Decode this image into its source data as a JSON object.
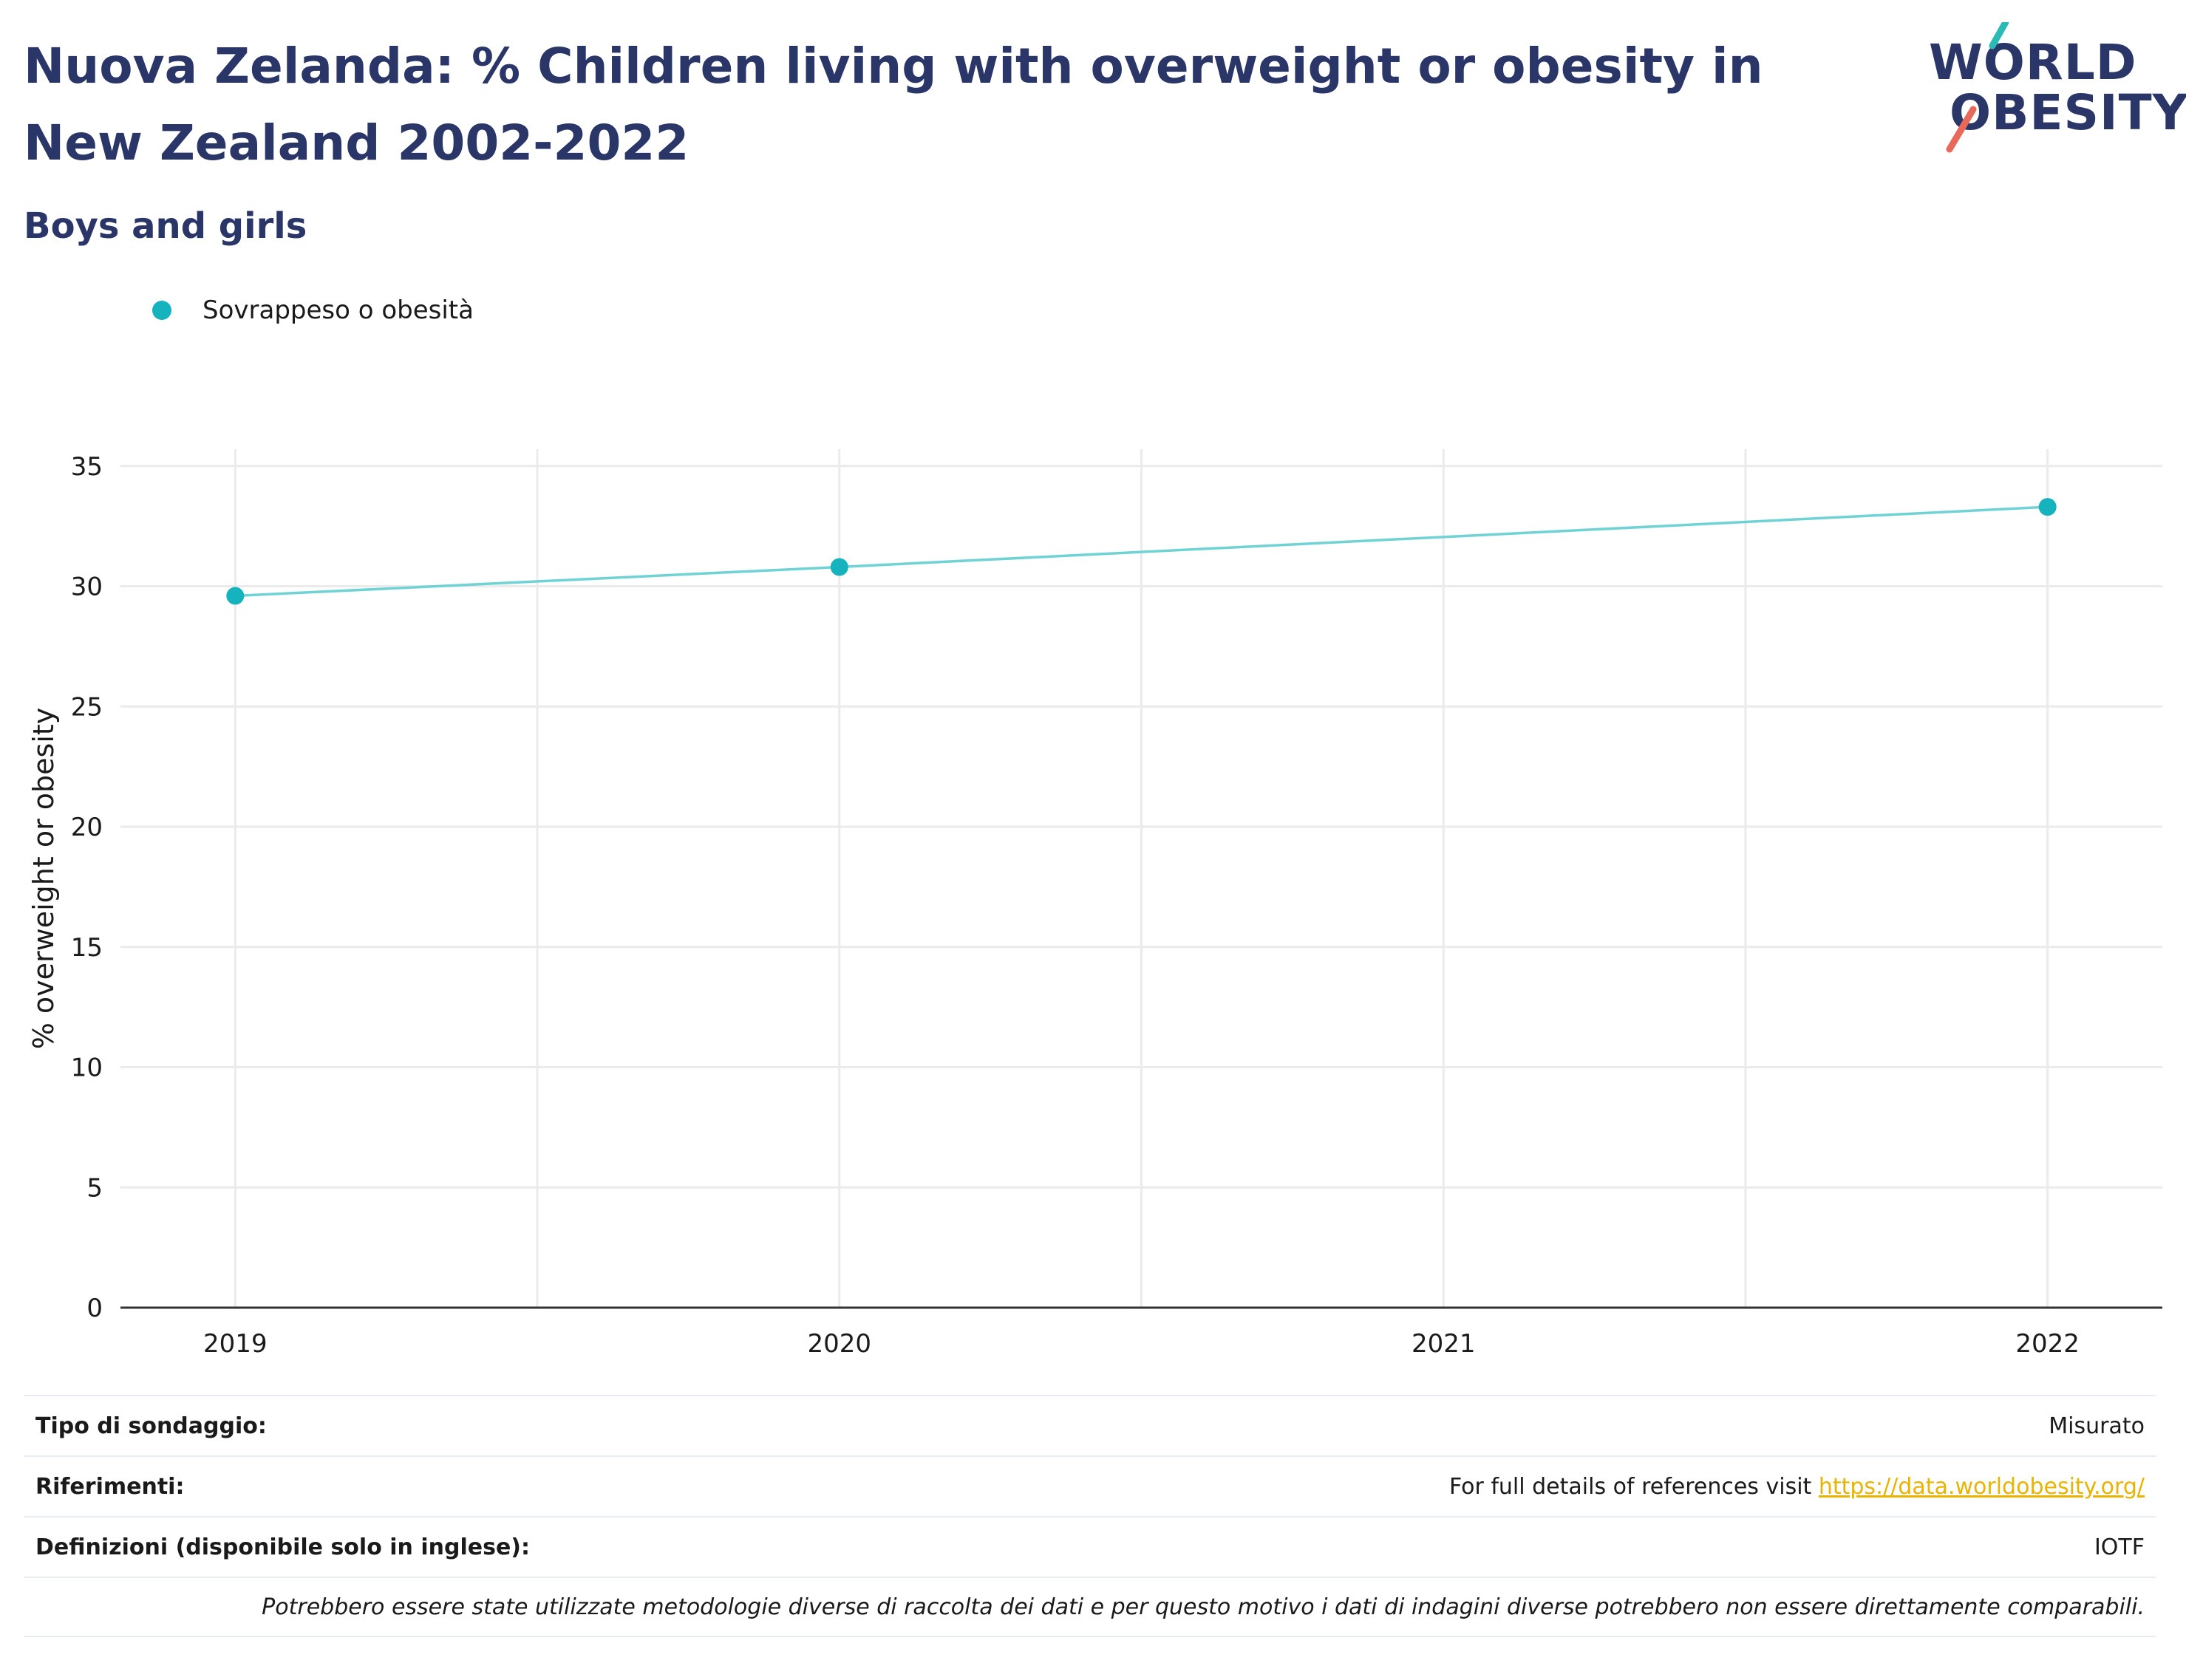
{
  "header": {
    "title": "Nuova Zelanda: % Children living with overweight or obesity in New Zealand 2002-2022",
    "subtitle": "Boys and girls"
  },
  "logo": {
    "line1": "WORLD",
    "line2": "OBESITY"
  },
  "colors": {
    "series": "#14b3be",
    "series_line": "#6fd3d6",
    "title": "#2b3668",
    "grid": "#ebebeb",
    "axis": "#333333",
    "logo_teal": "#2bbab5",
    "logo_red": "#e8685a",
    "link": "#e8b400"
  },
  "chart_data": {
    "type": "line",
    "title": "Nuova Zelanda: % Children living with overweight or obesity in New Zealand 2002-2022",
    "subtitle": "Boys and girls",
    "xlabel": "",
    "ylabel": "% overweight or obesity",
    "x": [
      2019,
      2020,
      2022
    ],
    "xticks": [
      "2019",
      "2020",
      "2021",
      "2022"
    ],
    "xlim": [
      2018.81,
      2022.19
    ],
    "ylim": [
      0,
      35.7
    ],
    "yticks": [
      0,
      5,
      10,
      15,
      20,
      25,
      30,
      35
    ],
    "grid": true,
    "legend": "top-left",
    "series": [
      {
        "name": "Sovrappeso o obesità",
        "values": [
          29.6,
          30.8,
          33.3
        ]
      }
    ]
  },
  "footer": {
    "rows": [
      {
        "label": "Tipo di sondaggio:",
        "value": "Misurato"
      },
      {
        "label": "Riferimenti:",
        "value": "For full details of references visit ",
        "link": "https://data.worldobesity.org/"
      },
      {
        "label": "Definizioni (disponibile solo in inglese):",
        "value": "IOTF"
      }
    ],
    "note": "Potrebbero essere state utilizzate metodologie diverse di raccolta dei dati e per questo motivo i dati di indagini diverse potrebbero non essere direttamente comparabili."
  }
}
